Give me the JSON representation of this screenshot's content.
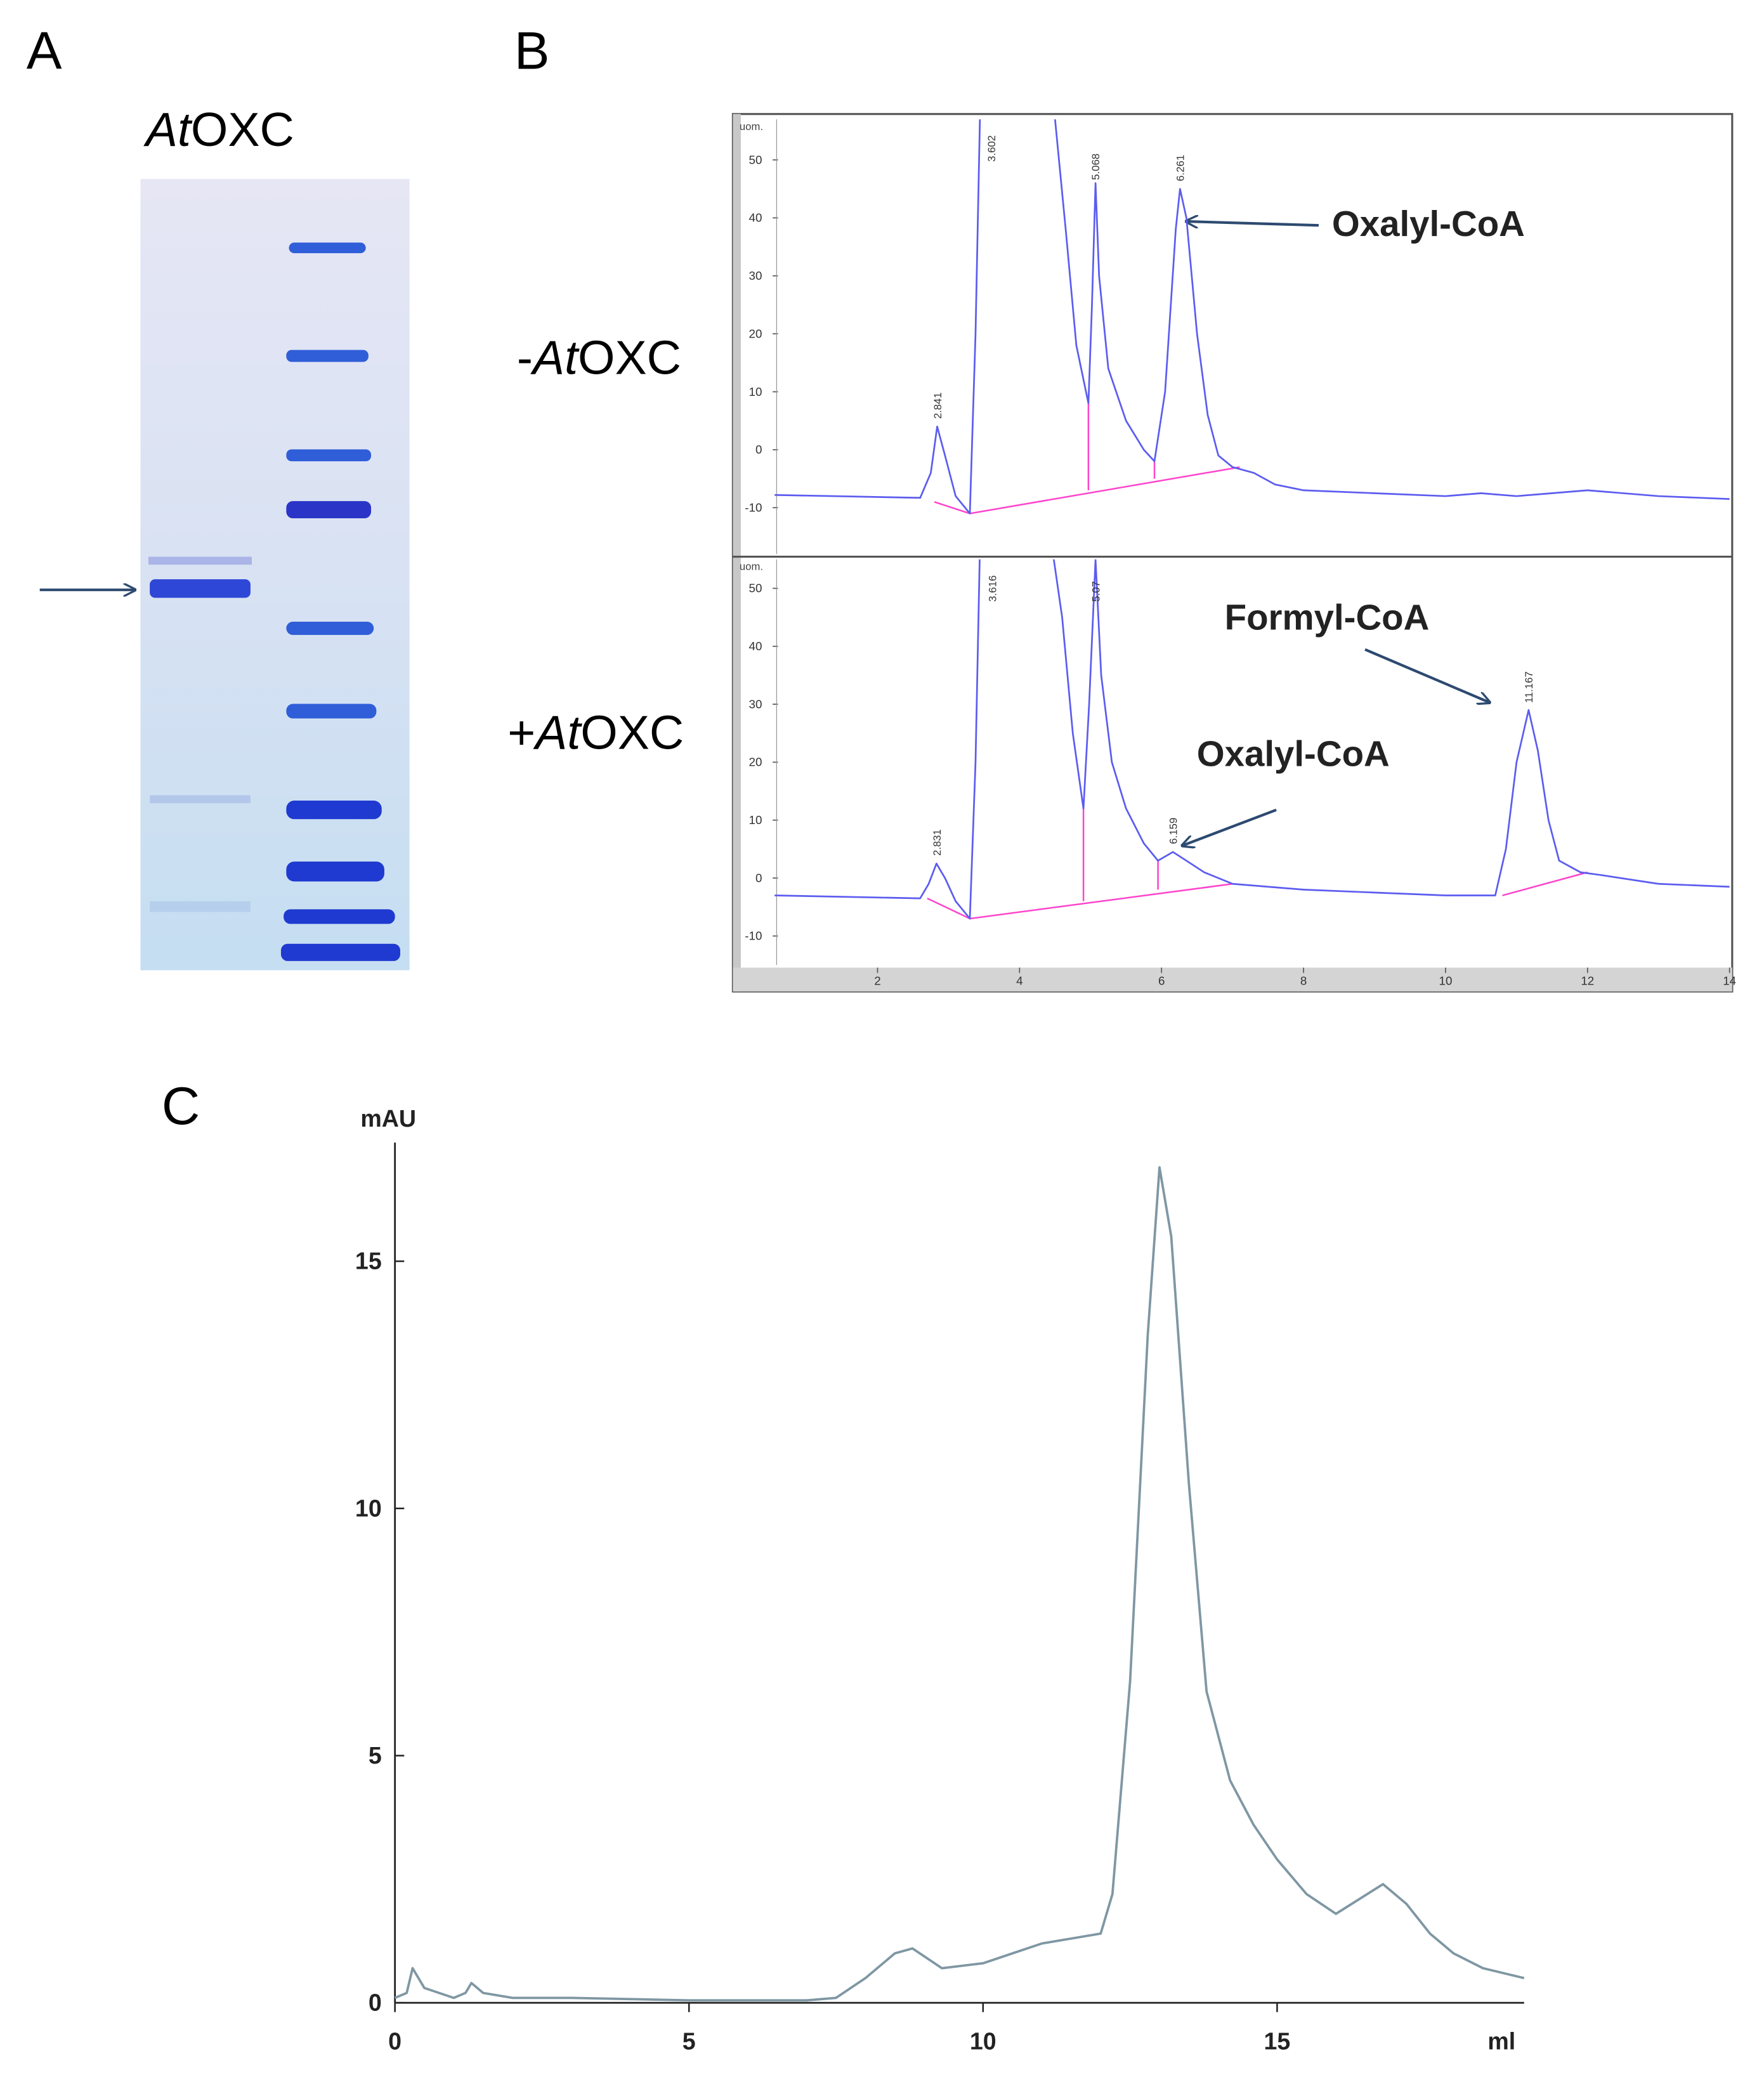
{
  "panel_labels": [
    "A",
    "B",
    "C"
  ],
  "gel": {
    "label": {
      "parts": [
        "At",
        "OXC"
      ],
      "italic": [
        true,
        false
      ]
    }
  },
  "chart_data": [
    {
      "type": "line",
      "condition": {
        "parts": [
          "-",
          "At",
          "OXC"
        ],
        "italic": [
          false,
          true,
          false
        ]
      },
      "y_axis_label": "uom.",
      "x": [
        0.55,
        2.6,
        2.75,
        2.84,
        2.95,
        3.1,
        3.3,
        3.38,
        3.45,
        4.4,
        4.5,
        4.65,
        4.8,
        4.97,
        5.02,
        5.07,
        5.12,
        5.25,
        5.5,
        5.75,
        5.9,
        6.05,
        6.2,
        6.26,
        6.35,
        6.5,
        6.65,
        6.8,
        7.0,
        7.3,
        7.6,
        8.0,
        9.0,
        10.0,
        10.5,
        11.0,
        12.0,
        13.0,
        14.0
      ],
      "series": [
        {
          "color": "#5c5cf0",
          "values": [
            -7.8,
            -8.3,
            -4,
            4,
            -1,
            -8,
            -11,
            20,
            62,
            62,
            57,
            38,
            18,
            8,
            25,
            46,
            30,
            14,
            5,
            0,
            -2,
            10,
            38,
            45,
            40,
            20,
            6,
            -1,
            -3,
            -4,
            -6,
            -7,
            -7.5,
            -8,
            -7.5,
            -8,
            -7,
            -8,
            -8.5
          ]
        }
      ],
      "baseline": {
        "color": "#ff44cc",
        "segments": [
          {
            "x": [
              2.8,
              3.3,
              7.1
            ],
            "y": [
              -9,
              -11,
              -3
            ]
          },
          {
            "x": [
              4.97,
              4.97
            ],
            "y": [
              -7,
              8
            ]
          },
          {
            "x": [
              5.9,
              5.9
            ],
            "y": [
              -5,
              -2
            ]
          }
        ]
      },
      "peak_labels": [
        {
          "value": 2.841,
          "label": "2.841"
        },
        {
          "value": 3.602,
          "label": "3.602"
        },
        {
          "value": 5.068,
          "label": "5.068"
        },
        {
          "value": 6.261,
          "label": "6.261"
        }
      ],
      "annotations": [
        "Oxalyl-CoA"
      ],
      "xlim": [
        0,
        14
      ],
      "ylim": [
        -18,
        57
      ],
      "yticks": [
        -10,
        0,
        10,
        20,
        30,
        40,
        50
      ]
    },
    {
      "type": "line",
      "condition": {
        "parts": [
          "+",
          "At",
          "OXC"
        ],
        "italic": [
          false,
          true,
          false
        ]
      },
      "y_axis_label": "uom.",
      "x": [
        0.55,
        2.6,
        2.72,
        2.83,
        2.95,
        3.1,
        3.3,
        3.38,
        3.45,
        4.4,
        4.6,
        4.75,
        4.9,
        4.98,
        5.07,
        5.15,
        5.3,
        5.5,
        5.75,
        5.95,
        6.16,
        6.35,
        6.6,
        7.0,
        8.0,
        9.0,
        10.0,
        10.7,
        10.85,
        11.0,
        11.17,
        11.3,
        11.45,
        11.6,
        11.9,
        12.2,
        13.0,
        14.0
      ],
      "series": [
        {
          "color": "#5c5cf0",
          "values": [
            -3,
            -3.5,
            -1,
            2.5,
            0,
            -4,
            -7,
            20,
            62,
            62,
            45,
            25,
            12,
            30,
            55,
            35,
            20,
            12,
            6,
            3,
            4.5,
            3,
            1,
            -1,
            -2,
            -2.5,
            -3,
            -3,
            5,
            20,
            29,
            22,
            10,
            3,
            1,
            0.5,
            -1,
            -1.5
          ]
        }
      ],
      "baseline": {
        "color": "#ff44cc",
        "segments": [
          {
            "x": [
              2.7,
              3.3,
              7.0
            ],
            "y": [
              -3.5,
              -7,
              -1
            ]
          },
          {
            "x": [
              10.8,
              12.0
            ],
            "y": [
              -3,
              1
            ]
          },
          {
            "x": [
              4.9,
              4.9
            ],
            "y": [
              -4,
              12
            ]
          },
          {
            "x": [
              5.95,
              5.95
            ],
            "y": [
              -2,
              3
            ]
          }
        ]
      },
      "peak_labels": [
        {
          "value": 2.831,
          "label": "2.831"
        },
        {
          "value": 3.616,
          "label": "3.616"
        },
        {
          "value": 5.07,
          "label": "5.07"
        },
        {
          "value": 6.159,
          "label": "6.159"
        },
        {
          "value": 11.167,
          "label": "11.167"
        }
      ],
      "annotations": [
        "Formyl-CoA",
        "Oxalyl-CoA"
      ],
      "xlim": [
        0,
        14
      ],
      "ylim": [
        -15,
        55
      ],
      "xticks": [
        2,
        4,
        6,
        8,
        10,
        12,
        14
      ],
      "yticks": [
        -10,
        0,
        10,
        20,
        30,
        40,
        50
      ]
    },
    {
      "type": "line",
      "x_axis_label": "ml",
      "y_axis_label": "mAU",
      "x": [
        0,
        0.2,
        0.3,
        0.5,
        1.0,
        1.2,
        1.3,
        1.5,
        2,
        3,
        5,
        7,
        7.5,
        8,
        8.5,
        8.8,
        9.3,
        10,
        10.5,
        11,
        11.5,
        12,
        12.2,
        12.5,
        12.8,
        13.0,
        13.2,
        13.5,
        13.8,
        14.2,
        14.6,
        15,
        15.5,
        16,
        16.4,
        16.8,
        17.2,
        17.6,
        18,
        18.5,
        19.2
      ],
      "series": [
        {
          "color": "#7f97a3",
          "values": [
            0.1,
            0.2,
            0.7,
            0.3,
            0.1,
            0.2,
            0.4,
            0.2,
            0.1,
            0.1,
            0.05,
            0.05,
            0.1,
            0.5,
            1.0,
            1.1,
            0.7,
            0.8,
            1.0,
            1.2,
            1.3,
            1.4,
            2.2,
            6.5,
            13.5,
            16.9,
            15.5,
            10.5,
            6.3,
            4.5,
            3.6,
            2.9,
            2.2,
            1.8,
            2.1,
            2.4,
            2.0,
            1.4,
            1.0,
            0.7,
            0.5
          ]
        }
      ],
      "xlim": [
        0,
        19.2
      ],
      "ylim": [
        0,
        17.4
      ],
      "xticks": [
        0,
        5,
        10,
        15
      ],
      "yticks": [
        0,
        5,
        10,
        15
      ]
    }
  ]
}
